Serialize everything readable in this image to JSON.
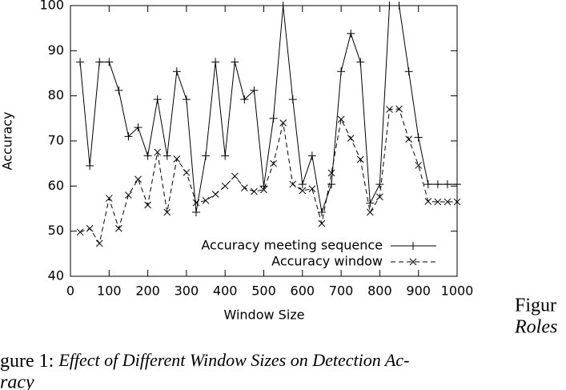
{
  "chart_data": {
    "type": "line",
    "xlabel": "Window Size",
    "ylabel": "Accuracy",
    "x": [
      25,
      50,
      75,
      100,
      125,
      150,
      175,
      200,
      225,
      250,
      275,
      300,
      325,
      350,
      375,
      400,
      425,
      450,
      475,
      500,
      525,
      550,
      575,
      600,
      625,
      650,
      675,
      700,
      725,
      750,
      775,
      800,
      825,
      850,
      875,
      900,
      925,
      950,
      975,
      1000
    ],
    "series": [
      {
        "name": "Accuracy meeting sequence",
        "color": "#000000",
        "marker": "plus",
        "dashed": false,
        "values": [
          87.5,
          64.5,
          87.5,
          87.5,
          81.2,
          71,
          73,
          66.7,
          79.2,
          66.7,
          85.4,
          79.2,
          54.2,
          66.7,
          87.5,
          66.7,
          87.5,
          79.2,
          81.2,
          60,
          75,
          100,
          79.2,
          60.4,
          66.7,
          54.2,
          60.4,
          85.4,
          93.8,
          87.5,
          56.2,
          60.4,
          100,
          100,
          85.4,
          70.8,
          60.4,
          60.4,
          60.4,
          60.4
        ]
      },
      {
        "name": "Accuracy window",
        "color": "#000000",
        "marker": "cross",
        "dashed": true,
        "values": [
          49.8,
          50.6,
          47.3,
          57.3,
          50.6,
          58,
          61.5,
          55.8,
          67.5,
          54.2,
          66,
          63,
          56.3,
          56.8,
          58.2,
          60,
          62.2,
          59.6,
          58.8,
          59.2,
          65,
          74,
          60.4,
          59,
          59.4,
          51.7,
          62.9,
          74.8,
          70.6,
          65.9,
          54.2,
          57.6,
          77,
          77.1,
          70.4,
          64.6,
          56.6,
          56.5,
          56.5,
          56.5
        ]
      }
    ],
    "xlim": [
      0,
      1000
    ],
    "xticks": [
      0,
      100,
      200,
      300,
      400,
      500,
      600,
      700,
      800,
      900,
      1000
    ],
    "ylim": [
      40,
      100
    ],
    "yticks": [
      40,
      50,
      60,
      70,
      80,
      90,
      100
    ],
    "legend": "lower-right"
  },
  "caption": {
    "label": "gure 1:",
    "text": "Effect of Different Window Sizes on Detection Ac-",
    "text_cont": "racy"
  },
  "side_caption": {
    "label": "Figur",
    "text": "Roles"
  }
}
